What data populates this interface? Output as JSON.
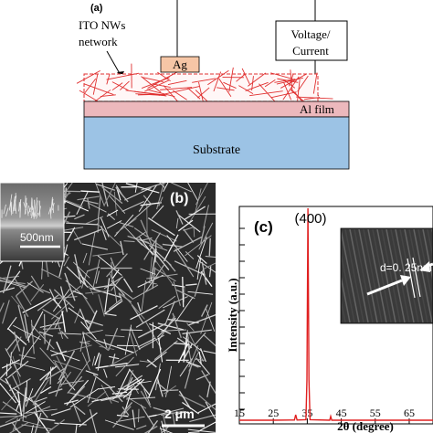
{
  "panel_a": {
    "tag": "(a)",
    "nw_label": [
      "ITO NWs",
      "network"
    ],
    "electrode_label": "Ag",
    "meter_label": [
      "Voltage/",
      "Current"
    ],
    "film_label": "Al film",
    "substrate_label": "Substrate",
    "colors": {
      "wire": "#e03030",
      "ag_pad": "#f6c6a6",
      "al_film": "#ecb8bc",
      "substrate": "#9cc3e5"
    }
  },
  "panel_b": {
    "tag": "(b)",
    "inset_scale": "500nm",
    "scale": "2 μm"
  },
  "panel_c": {
    "tag": "(c)",
    "peak_label": "(400)",
    "inset_label": "d=0. 25nm",
    "ylabel": "Intensity (a.u.)",
    "xlabel": "2θ (degree)",
    "xticks": [
      "15",
      "25",
      "35",
      "45",
      "55",
      "65"
    ]
  },
  "chart_data": {
    "type": "line",
    "xlabel": "2θ (degree)",
    "ylabel": "Intensity (a.u.)",
    "xlim": [
      15,
      72
    ],
    "series": [
      {
        "color": "#e02020",
        "points": [
          [
            15,
            1
          ],
          [
            20,
            1
          ],
          [
            25,
            1
          ],
          [
            30,
            1.1
          ],
          [
            31.2,
            1.1
          ],
          [
            31.6,
            3.5
          ],
          [
            32,
            1.1
          ],
          [
            34.6,
            1.2
          ],
          [
            34.9,
            20
          ],
          [
            35.2,
            100
          ],
          [
            35.5,
            20
          ],
          [
            35.8,
            1.2
          ],
          [
            41.6,
            1
          ],
          [
            41.9,
            2.8
          ],
          [
            42.2,
            1
          ],
          [
            50,
            1
          ],
          [
            60,
            1
          ],
          [
            72,
            1
          ]
        ]
      }
    ],
    "annotations": [
      "(400)"
    ]
  }
}
